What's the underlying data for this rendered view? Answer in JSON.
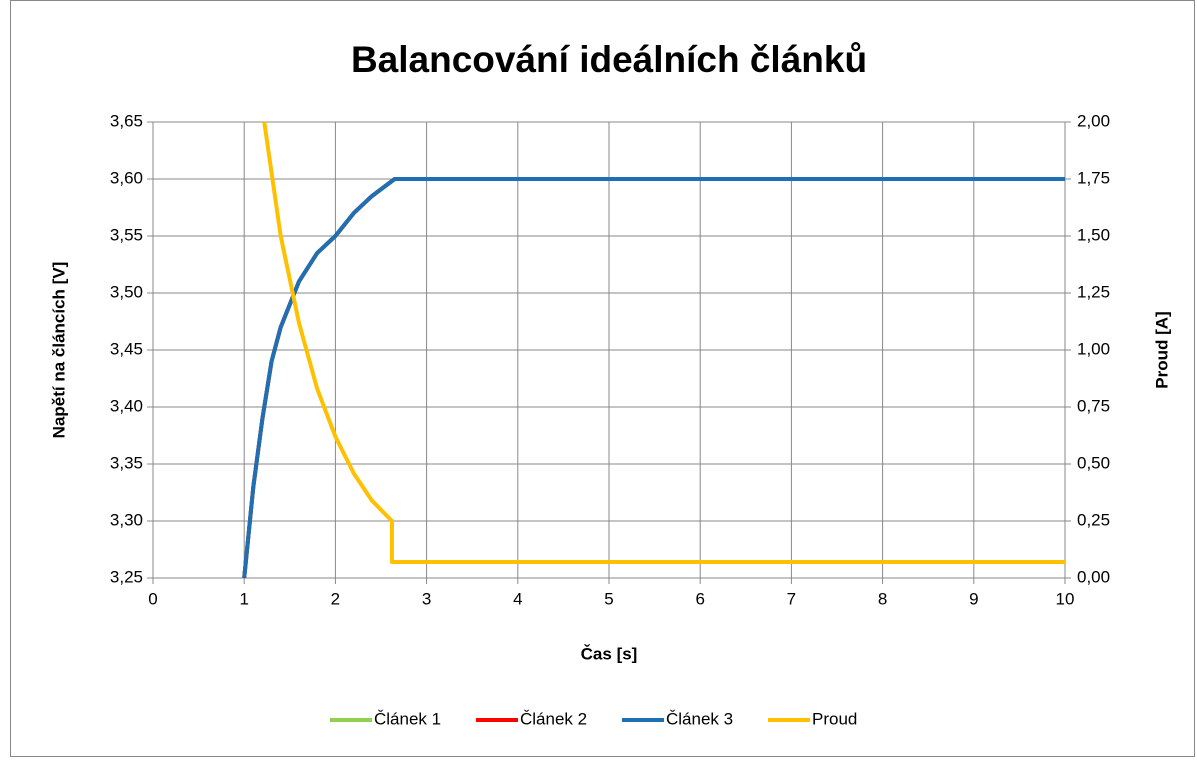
{
  "chart_data": {
    "type": "line",
    "title": "Balancování ideálních článků",
    "x_label": "Čas [s]",
    "y_label": "Napětí na článcích [V]",
    "y2_label": "Proud [A]",
    "xlim": [
      0,
      10
    ],
    "xticks": [
      0,
      1,
      2,
      3,
      4,
      5,
      6,
      7,
      8,
      9,
      10
    ],
    "ylim": [
      3.25,
      3.65
    ],
    "yticks": [
      {
        "value": 3.25,
        "label": "3,25"
      },
      {
        "value": 3.3,
        "label": "3,30"
      },
      {
        "value": 3.35,
        "label": "3,35"
      },
      {
        "value": 3.4,
        "label": "3,40"
      },
      {
        "value": 3.45,
        "label": "3,45"
      },
      {
        "value": 3.5,
        "label": "3,50"
      },
      {
        "value": 3.55,
        "label": "3,55"
      },
      {
        "value": 3.6,
        "label": "3,60"
      },
      {
        "value": 3.65,
        "label": "3,65"
      }
    ],
    "y2lim": [
      0,
      2
    ],
    "y2ticks": [
      {
        "value": 0,
        "label": "0,00"
      },
      {
        "value": 0.25,
        "label": "0,25"
      },
      {
        "value": 0.5,
        "label": "0,50"
      },
      {
        "value": 0.75,
        "label": "0,75"
      },
      {
        "value": 1,
        "label": "1,00"
      },
      {
        "value": 1.25,
        "label": "1,25"
      },
      {
        "value": 1.5,
        "label": "1,50"
      },
      {
        "value": 1.75,
        "label": "1,75"
      },
      {
        "value": 2,
        "label": "2,00"
      }
    ],
    "grid": true,
    "legend": "bottom",
    "series": [
      {
        "name": "Článek 1",
        "color": "#92d050",
        "x": [
          1,
          1.1,
          1.2,
          1.3,
          1.4,
          1.6,
          1.8,
          2,
          2.2,
          2.4,
          2.65,
          10
        ],
        "values": [
          3.25,
          3.33,
          3.39,
          3.44,
          3.47,
          3.51,
          3.535,
          3.55,
          3.57,
          3.585,
          3.6,
          3.6
        ]
      },
      {
        "name": "Článek 2",
        "color": "#ff0000",
        "x": [
          1,
          1.1,
          1.2,
          1.3,
          1.4,
          1.6,
          1.8,
          2,
          2.2,
          2.4,
          2.65,
          10
        ],
        "values": [
          3.25,
          3.33,
          3.39,
          3.44,
          3.47,
          3.51,
          3.535,
          3.55,
          3.57,
          3.585,
          3.6,
          3.6
        ]
      },
      {
        "name": "Článek 3",
        "color": "#1f6fb4",
        "x": [
          1,
          1.1,
          1.2,
          1.3,
          1.4,
          1.6,
          1.8,
          2,
          2.2,
          2.4,
          2.65,
          10
        ],
        "values": [
          3.25,
          3.33,
          3.39,
          3.44,
          3.47,
          3.51,
          3.535,
          3.55,
          3.57,
          3.585,
          3.6,
          3.6
        ]
      },
      {
        "name": "Proud",
        "color": "#ffc000",
        "axis": "y2",
        "x": [
          1.22,
          1.4,
          1.6,
          1.8,
          2,
          2.2,
          2.4,
          2.62,
          2.62,
          10
        ],
        "values": [
          2,
          1.5,
          1.12,
          0.83,
          0.62,
          0.46,
          0.34,
          0.25,
          0.07,
          0.07
        ]
      }
    ]
  }
}
